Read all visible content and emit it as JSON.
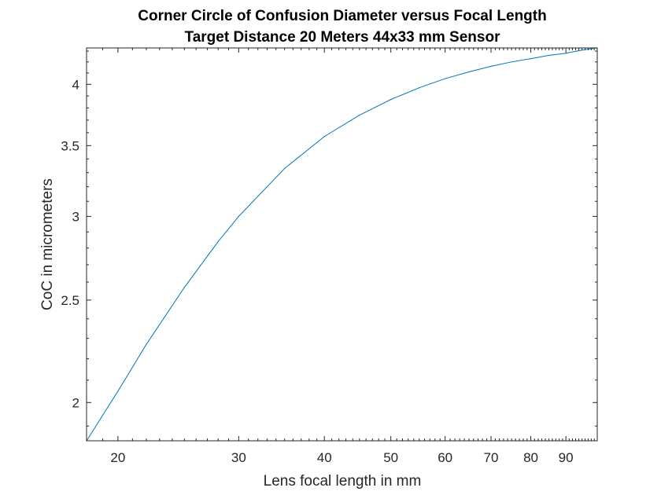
{
  "chart_data": {
    "type": "line",
    "title": "Corner Circle of Confusion Diameter versus Focal Length",
    "subtitle": "Target Distance 20 Meters 44x33 mm Sensor",
    "xlabel": "Lens focal length in mm",
    "ylabel": "CoC in micrometers",
    "xscale": "log",
    "yscale": "log",
    "xlim": [
      18,
      100
    ],
    "ylim": [
      1.84,
      4.33
    ],
    "xticks": [
      20,
      30,
      40,
      50,
      60,
      70,
      80,
      90
    ],
    "yticks": [
      2,
      2.5,
      3,
      3.5,
      4
    ],
    "grid": false,
    "series": [
      {
        "color": "#0072bd",
        "x": [
          18,
          20,
          22,
          25,
          28,
          30,
          35,
          40,
          45,
          50,
          55,
          60,
          65,
          70,
          75,
          80,
          85,
          90,
          95,
          100
        ],
        "y": [
          1.84,
          2.05,
          2.27,
          2.57,
          2.84,
          3.0,
          3.33,
          3.57,
          3.74,
          3.87,
          3.97,
          4.05,
          4.11,
          4.16,
          4.2,
          4.23,
          4.26,
          4.28,
          4.31,
          4.33
        ]
      }
    ]
  }
}
